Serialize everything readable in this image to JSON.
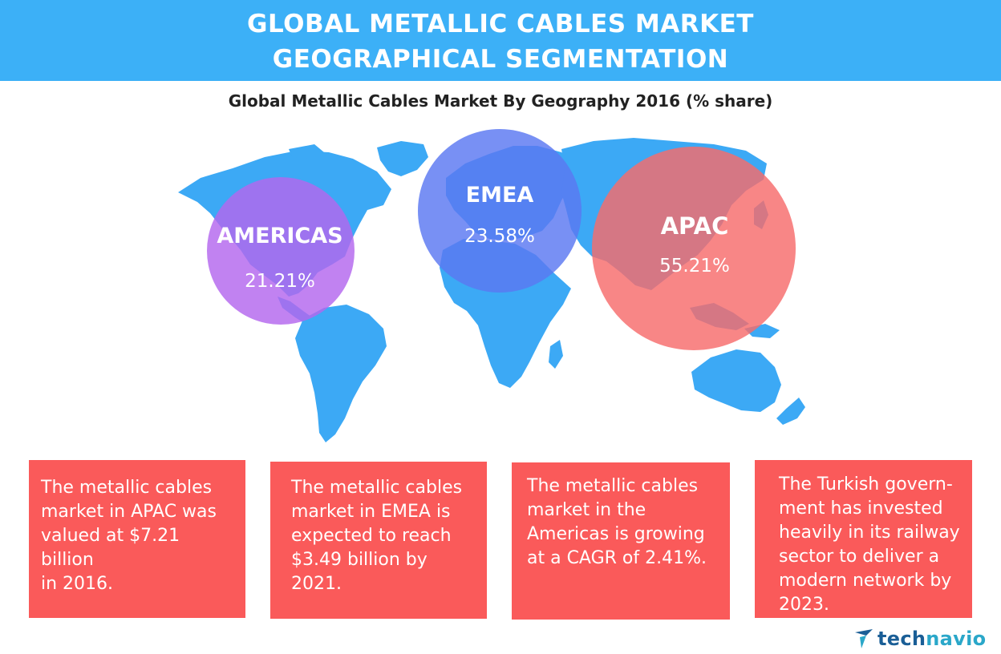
{
  "header": {
    "title_line1": "GLOBAL METALLIC CABLES MARKET",
    "title_line2": "GEOGRAPHICAL SEGMENTATION"
  },
  "subtitle": "Global Metallic Cables Market By Geography 2016 (% share)",
  "regions": [
    {
      "name": "AMERICAS",
      "share": "21.21%",
      "value": 21.21,
      "color": "#b366ee"
    },
    {
      "name": "EMEA",
      "share": "23.58%",
      "value": 23.58,
      "color": "#5a78f2"
    },
    {
      "name": "APAC",
      "share": "55.21%",
      "value": 55.21,
      "color": "#f76b6b"
    }
  ],
  "cards": [
    {
      "lines": [
        "The metallic cables",
        "market in APAC was",
        "valued at $7.21 billion",
        "in 2016."
      ]
    },
    {
      "lines": [
        "The metallic cables",
        "market in EMEA is",
        "expected to reach",
        "$3.49 billion by 2021."
      ]
    },
    {
      "lines": [
        "The metallic cables",
        "market in the",
        "Americas is growing",
        "at a CAGR of 2.41%."
      ]
    },
    {
      "lines": [
        "The Turkish govern-",
        "ment has invested",
        "heavily in its railway",
        "sector to deliver a",
        "modern network by",
        "2023."
      ]
    }
  ],
  "brand": {
    "prefix": "tech",
    "suffix": "navio",
    "icon": "technavio-logo-icon"
  },
  "colors": {
    "banner": "#3cb0f7",
    "map": "#3ca9f5",
    "card": "#fa5a5a"
  }
}
